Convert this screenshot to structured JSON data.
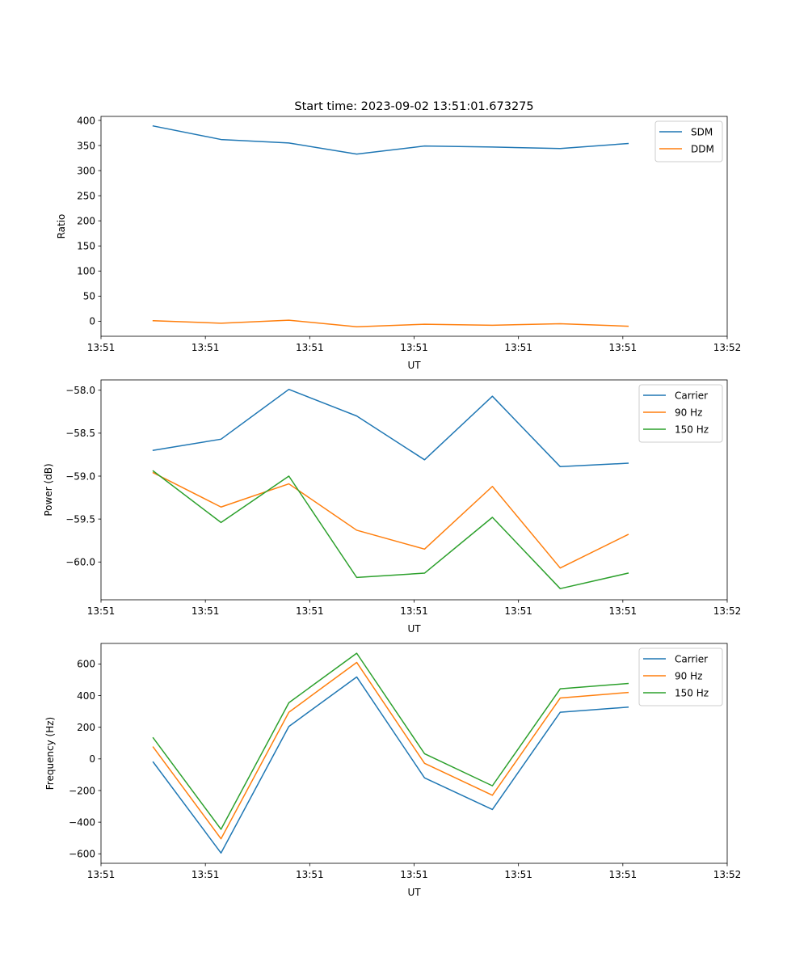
{
  "chart_data": [
    {
      "type": "line",
      "title": "Start time: 2023-09-02 13:51:01.673275",
      "xlabel": "UT",
      "ylabel": "Ratio",
      "xlim": [
        0,
        12
      ],
      "ylim": [
        -30,
        408
      ],
      "x_ticks": [
        0,
        2,
        4,
        6,
        8,
        10,
        12
      ],
      "x_tick_labels": [
        "13:51",
        "13:51",
        "13:51",
        "13:51",
        "13:51",
        "13:51",
        "13:52"
      ],
      "y_ticks": [
        0,
        50,
        100,
        150,
        200,
        250,
        300,
        350,
        400
      ],
      "y_tick_labels": [
        "0",
        "50",
        "100",
        "150",
        "200",
        "250",
        "300",
        "350",
        "400"
      ],
      "legend_position": "top-right",
      "x": [
        1.0,
        2.3,
        3.6,
        4.9,
        6.2,
        7.5,
        8.8,
        10.1
      ],
      "series": [
        {
          "name": "SDM",
          "color": "#1f77b4",
          "values": [
            389,
            362,
            355,
            333,
            349,
            347,
            344,
            354
          ]
        },
        {
          "name": "DDM",
          "color": "#ff7f0e",
          "values": [
            1,
            -4,
            2,
            -11,
            -6,
            -8,
            -5,
            -10
          ]
        }
      ]
    },
    {
      "type": "line",
      "title": "",
      "xlabel": "UT",
      "ylabel": "Power (dB)",
      "xlim": [
        0,
        12
      ],
      "ylim": [
        -60.44,
        -57.88
      ],
      "x_ticks": [
        0,
        2,
        4,
        6,
        8,
        10,
        12
      ],
      "x_tick_labels": [
        "13:51",
        "13:51",
        "13:51",
        "13:51",
        "13:51",
        "13:51",
        "13:52"
      ],
      "y_ticks": [
        -58.0,
        -58.5,
        -59.0,
        -59.5,
        -60.0
      ],
      "y_tick_labels": [
        "−58.0",
        "−58.5",
        "−59.0",
        "−59.5",
        "−60.0"
      ],
      "legend_position": "top-right",
      "x": [
        1.0,
        2.3,
        3.6,
        4.9,
        6.2,
        7.5,
        8.8,
        10.1
      ],
      "series": [
        {
          "name": "Carrier",
          "color": "#1f77b4",
          "values": [
            -58.7,
            -58.57,
            -57.99,
            -58.3,
            -58.81,
            -58.07,
            -58.89,
            -58.85
          ]
        },
        {
          "name": "90 Hz",
          "color": "#ff7f0e",
          "values": [
            -58.96,
            -59.36,
            -59.09,
            -59.63,
            -59.85,
            -59.12,
            -60.07,
            -59.68
          ]
        },
        {
          "name": "150 Hz",
          "color": "#2ca02c",
          "values": [
            -58.94,
            -59.54,
            -59.0,
            -60.18,
            -60.13,
            -59.48,
            -60.31,
            -60.13
          ]
        }
      ]
    },
    {
      "type": "line",
      "title": "",
      "xlabel": "UT",
      "ylabel": "Frequency (Hz)",
      "xlim": [
        0,
        12
      ],
      "ylim": [
        -660,
        730
      ],
      "x_ticks": [
        0,
        2,
        4,
        6,
        8,
        10,
        12
      ],
      "x_tick_labels": [
        "13:51",
        "13:51",
        "13:51",
        "13:51",
        "13:51",
        "13:51",
        "13:52"
      ],
      "y_ticks": [
        600,
        400,
        200,
        0,
        -200,
        -400,
        -600
      ],
      "y_tick_labels": [
        "600",
        "400",
        "200",
        "0",
        "−200",
        "−400",
        "−600"
      ],
      "legend_position": "top-right",
      "x": [
        1.0,
        2.3,
        3.6,
        4.9,
        6.2,
        7.5,
        8.8,
        10.1
      ],
      "series": [
        {
          "name": "Carrier",
          "color": "#1f77b4",
          "values": [
            -20,
            -595,
            205,
            518,
            -120,
            -320,
            295,
            327
          ]
        },
        {
          "name": "90 Hz",
          "color": "#ff7f0e",
          "values": [
            75,
            -505,
            295,
            610,
            -28,
            -230,
            385,
            420
          ]
        },
        {
          "name": "150 Hz",
          "color": "#2ca02c",
          "values": [
            133,
            -445,
            355,
            668,
            33,
            -170,
            443,
            477
          ]
        }
      ]
    }
  ]
}
